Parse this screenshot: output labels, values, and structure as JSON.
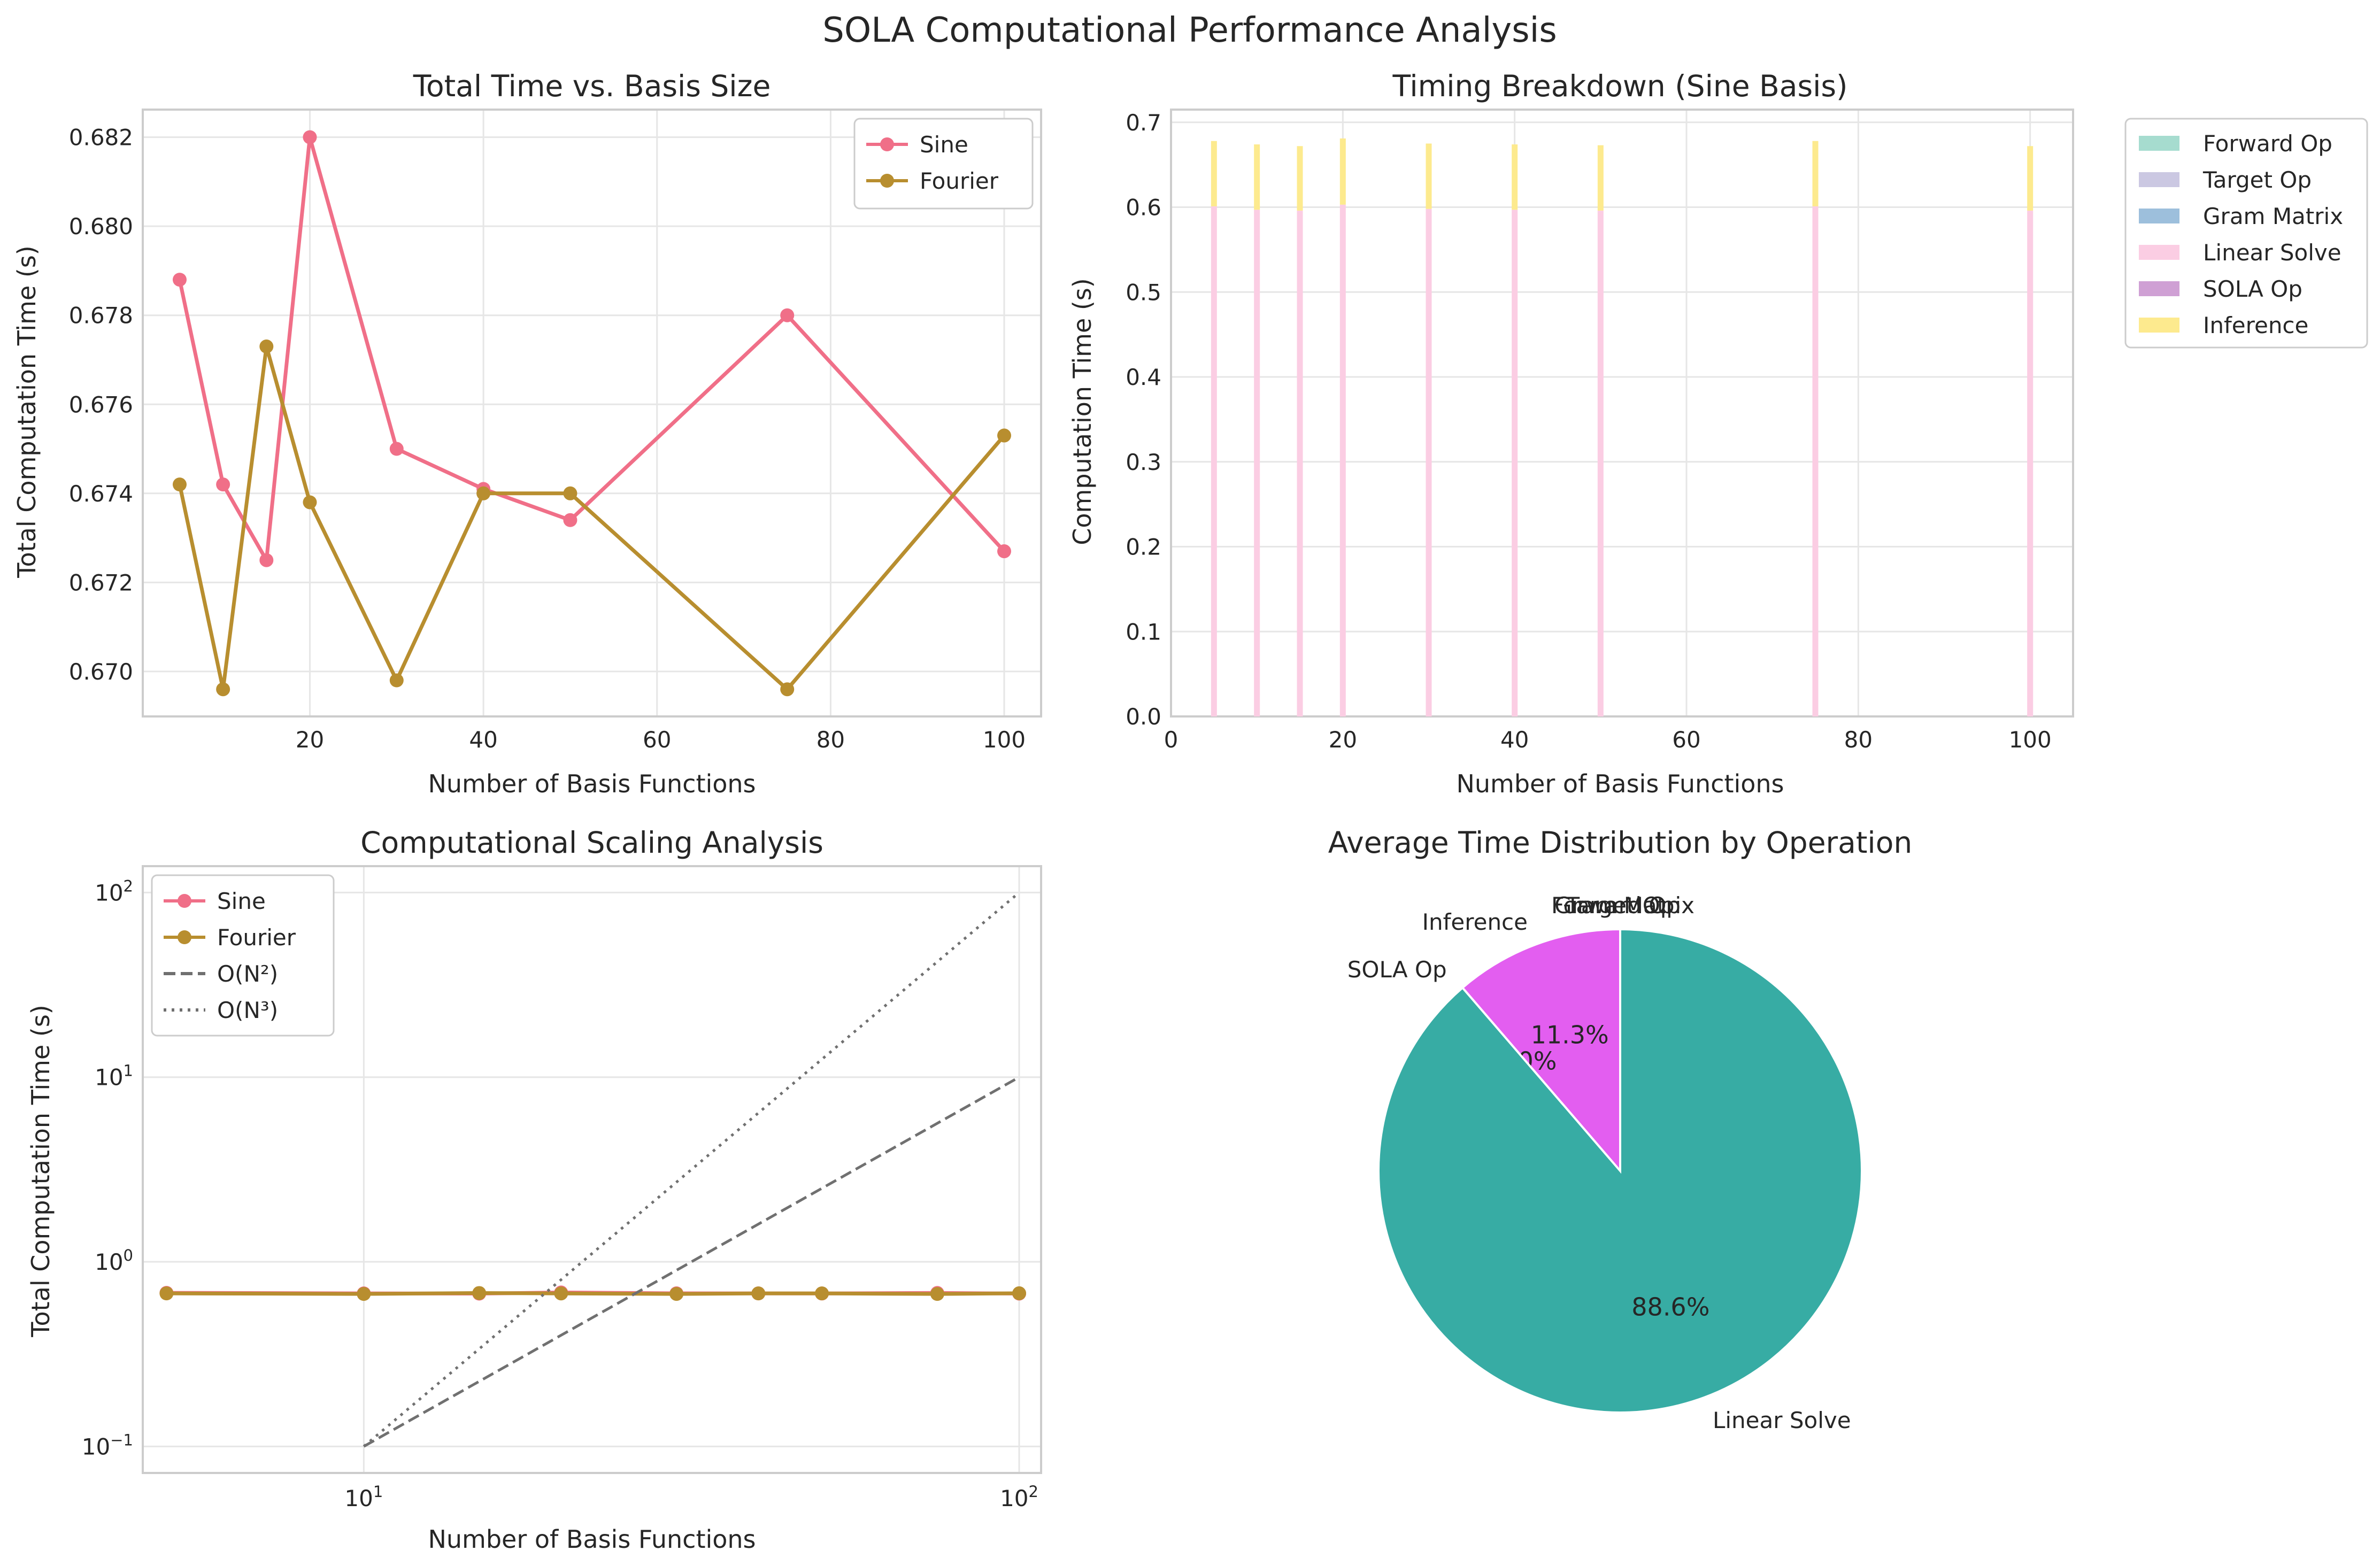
{
  "figure": {
    "title": "SOLA Computational Performance Analysis"
  },
  "colors": {
    "sine": "#f06f88",
    "fourier": "#b88e2f",
    "grid": "#e6e6e6",
    "spine": "#cccccc",
    "ref_line": "#707070",
    "pie_linear_solve": "#37aca4",
    "pie_inference": "#e35ef0"
  },
  "chart_data": [
    {
      "type": "line",
      "title": "Total Time vs. Basis Size",
      "xlabel": "Number of Basis Functions",
      "ylabel": "Total Computation Time (s)",
      "xlim": [
        0.75,
        104.25
      ],
      "ylim": [
        0.66899,
        0.68262
      ],
      "xticks": [
        20,
        40,
        60,
        80,
        100
      ],
      "yticks": [
        0.67,
        0.672,
        0.674,
        0.676,
        0.678,
        0.68,
        0.682
      ],
      "ytick_labels": [
        "0.670",
        "0.672",
        "0.674",
        "0.676",
        "0.678",
        "0.680",
        "0.682"
      ],
      "grid": true,
      "legend": "upper right",
      "x": [
        5,
        10,
        15,
        20,
        30,
        40,
        50,
        75,
        100
      ],
      "series": [
        {
          "name": "Sine",
          "color": "#f06f88",
          "values": [
            0.6788,
            0.6742,
            0.6725,
            0.682,
            0.675,
            0.6741,
            0.6734,
            0.678,
            0.6727
          ]
        },
        {
          "name": "Fourier",
          "color": "#b88e2f",
          "values": [
            0.6742,
            0.6696,
            0.6773,
            0.6738,
            0.6698,
            0.674,
            0.674,
            0.6696,
            0.6753
          ]
        }
      ]
    },
    {
      "type": "bar",
      "stacked": true,
      "title": "Timing Breakdown (Sine Basis)",
      "xlabel": "Number of Basis Functions",
      "ylabel": "Computation Time (s)",
      "xlim": [
        0,
        105
      ],
      "ylim": [
        0,
        0.715
      ],
      "xticks": [
        0,
        20,
        40,
        60,
        80,
        100
      ],
      "yticks": [
        0.0,
        0.1,
        0.2,
        0.3,
        0.4,
        0.5,
        0.6,
        0.7
      ],
      "ytick_labels": [
        "0.0",
        "0.1",
        "0.2",
        "0.3",
        "0.4",
        "0.5",
        "0.6",
        "0.7"
      ],
      "grid": true,
      "legend": "outside right",
      "categories": [
        5,
        10,
        15,
        20,
        30,
        40,
        50,
        75,
        100
      ],
      "series": [
        {
          "name": "Forward Op",
          "color": "#a6dccf",
          "values": [
            0,
            0,
            0,
            0,
            0,
            0,
            0,
            0,
            0
          ]
        },
        {
          "name": "Target Op",
          "color": "#cbc8e2",
          "values": [
            0,
            0,
            0,
            0,
            0,
            0,
            0,
            0,
            0
          ]
        },
        {
          "name": "Gram Matrix",
          "color": "#9dbfdc",
          "values": [
            0,
            0,
            0,
            0,
            0,
            0,
            0,
            0,
            0
          ]
        },
        {
          "name": "Linear Solve",
          "color": "#fbcde3",
          "values": [
            0.601,
            0.597,
            0.596,
            0.603,
            0.598,
            0.597,
            0.596,
            0.601,
            0.596
          ]
        },
        {
          "name": "SOLA Op",
          "color": "#cfa0d4",
          "values": [
            0,
            0,
            0,
            0,
            0,
            0,
            0,
            0,
            0
          ]
        },
        {
          "name": "Inference",
          "color": "#fdea8e",
          "values": [
            0.077,
            0.077,
            0.076,
            0.078,
            0.077,
            0.077,
            0.077,
            0.077,
            0.076
          ]
        }
      ]
    },
    {
      "type": "line",
      "log_x": true,
      "log_y": true,
      "title": "Computational Scaling Analysis",
      "xlabel": "Number of Basis Functions",
      "ylabel": "Total Computation Time (s)",
      "xlim": [
        4.6,
        108
      ],
      "ylim": [
        0.0718,
        139
      ],
      "xticks": [
        10,
        100
      ],
      "xtick_labels": [
        {
          "base": "10",
          "exp": "1"
        },
        {
          "base": "10",
          "exp": "2"
        }
      ],
      "yticks": [
        0.1,
        1,
        10,
        100
      ],
      "ytick_labels": [
        {
          "base": "10",
          "exp": "−1"
        },
        {
          "base": "10",
          "exp": "0"
        },
        {
          "base": "10",
          "exp": "1"
        },
        {
          "base": "10",
          "exp": "2"
        }
      ],
      "grid": true,
      "legend": "upper left",
      "x": [
        5,
        10,
        15,
        20,
        30,
        40,
        50,
        75,
        100
      ],
      "series": [
        {
          "name": "Sine",
          "color": "#f06f88",
          "style": "solid",
          "values": [
            0.6788,
            0.6742,
            0.6725,
            0.682,
            0.675,
            0.6741,
            0.6734,
            0.678,
            0.6727
          ]
        },
        {
          "name": "Fourier",
          "color": "#b88e2f",
          "style": "solid",
          "values": [
            0.6742,
            0.6696,
            0.6773,
            0.6738,
            0.6698,
            0.674,
            0.674,
            0.6696,
            0.6753
          ]
        },
        {
          "name": "O(N²)",
          "color": "#707070",
          "style": "dashed",
          "x": [
            10,
            100
          ],
          "values": [
            0.1,
            10
          ]
        },
        {
          "name": "O(N³)",
          "color": "#707070",
          "style": "dotted",
          "x": [
            10,
            100
          ],
          "values": [
            0.1,
            100
          ]
        }
      ]
    },
    {
      "type": "pie",
      "title": "Average Time Distribution by Operation",
      "slices": [
        {
          "label": "Forward Op",
          "value": 0.0,
          "pct_label": ""
        },
        {
          "label": "Target Op",
          "value": 0.0,
          "pct_label": ""
        },
        {
          "label": "Gram Matrix",
          "value": 0.0,
          "pct_label": "0.0%"
        },
        {
          "label": "Inference",
          "value": 11.3,
          "pct_label": "11.3%",
          "color": "#e35ef0"
        },
        {
          "label": "SOLA Op",
          "value": 0.0,
          "pct_label": "0.0%"
        },
        {
          "label": "Linear Solve",
          "value": 88.6,
          "pct_label": "88.6%",
          "color": "#37aca4"
        }
      ]
    }
  ]
}
